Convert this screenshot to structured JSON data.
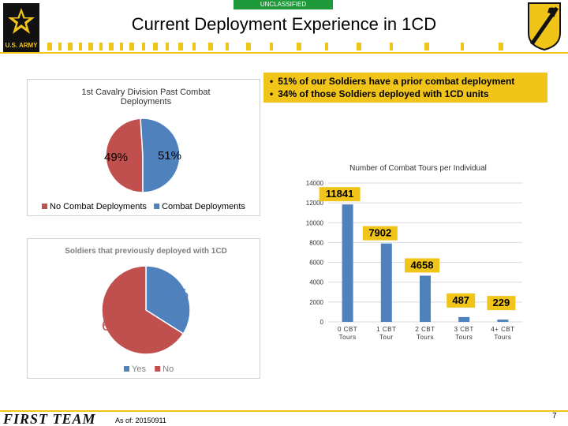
{
  "header": {
    "classification": "UNCLASSIFIED",
    "title": "Current Deployment Experience in 1CD",
    "army_logo_text": "U.S. ARMY"
  },
  "callout": {
    "bullets": [
      "51% of our Soldiers have a prior combat deployment",
      "34% of those Soldiers deployed with 1CD units"
    ],
    "bg_color": "#f0c419"
  },
  "footer": {
    "logo_text": "FIRST TEAM",
    "date_label": "As of: 20150911",
    "page_number": "7"
  },
  "colors": {
    "red": "#c0504d",
    "blue": "#4f81bd",
    "gold": "#f0c419"
  },
  "chart_data": [
    {
      "type": "pie",
      "title": "1st Cavalry Division Past Combat Deployments",
      "slices": [
        {
          "name": "No Combat Deployments",
          "value": 49,
          "label": "49%",
          "color": "#c0504d"
        },
        {
          "name": "Combat Deployments",
          "value": 51,
          "label": "51%",
          "color": "#4f81bd"
        }
      ],
      "legend_position": "bottom"
    },
    {
      "type": "pie",
      "title": "Soldiers that previously deployed with 1CD",
      "slices": [
        {
          "name": "Yes",
          "value": 34,
          "label": "34%",
          "color": "#4f81bd"
        },
        {
          "name": "No",
          "value": 66,
          "label": "66%",
          "color": "#c0504d"
        }
      ],
      "legend_position": "bottom"
    },
    {
      "type": "bar",
      "title": "Number of Combat Tours per Individual",
      "categories": [
        [
          "0 CBT",
          "Tours"
        ],
        [
          "1 CBT",
          "Tour"
        ],
        [
          "2 CBT",
          "Tours"
        ],
        [
          "3 CBT",
          "Tours"
        ],
        [
          "4+ CBT",
          "Tours"
        ]
      ],
      "values": [
        11841,
        7902,
        4658,
        487,
        229
      ],
      "data_labels": [
        "11841",
        "7902",
        "4658",
        "487",
        "229"
      ],
      "ylim": [
        0,
        14000
      ],
      "yticks": [
        "0",
        "2000",
        "4000",
        "6000",
        "8000",
        "10000",
        "12000",
        "14000"
      ],
      "grid": true,
      "bar_color": "#4f81bd",
      "label_bg": "#f0c419"
    }
  ]
}
